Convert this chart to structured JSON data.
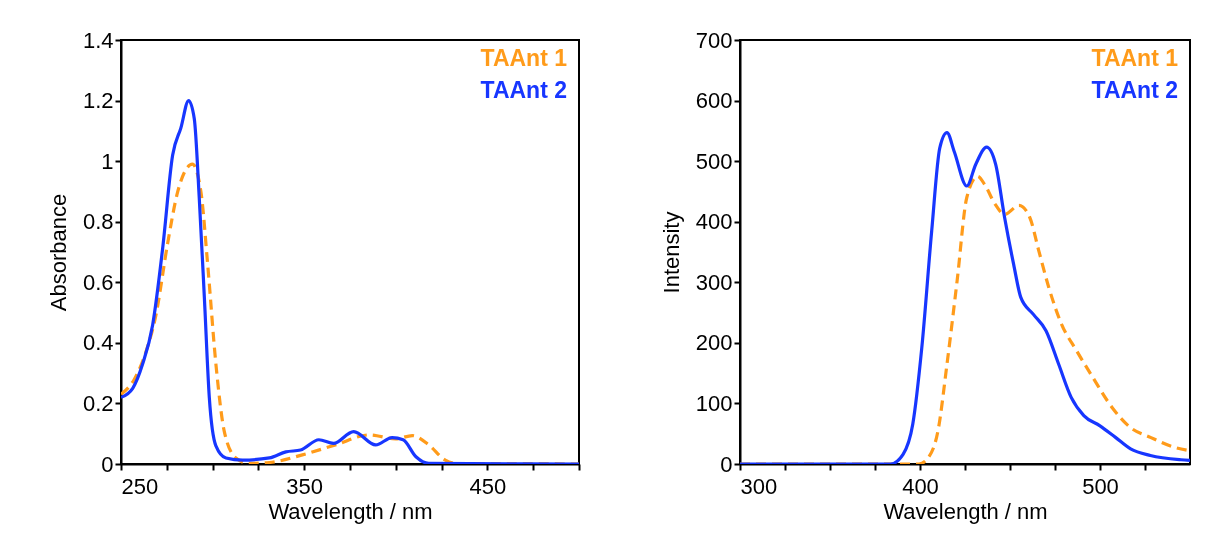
{
  "chart_data": [
    {
      "type": "line",
      "xlabel": "Wavelength / nm",
      "ylabel": "Absorbance",
      "xlim": [
        250,
        500
      ],
      "ylim": [
        0,
        1.4
      ],
      "xticks": [
        250,
        {
          "value": 275,
          "label": null
        },
        {
          "value": 300,
          "label": null
        },
        {
          "value": 325,
          "label": null
        },
        350,
        {
          "value": 375,
          "label": null
        },
        {
          "value": 400,
          "label": null
        },
        {
          "value": 425,
          "label": null
        },
        450,
        {
          "value": 475,
          "label": null
        },
        {
          "value": 500,
          "label": null
        }
      ],
      "yticks": [
        0,
        0.2,
        0.4,
        0.6,
        0.8,
        1,
        1.2,
        1.4
      ],
      "legend": "top right",
      "grid": false,
      "series": [
        {
          "name": "TAAnt 1",
          "color": "#ff9b1a",
          "line_style": "dashed",
          "x": [
            250,
            257.3,
            263.6,
            269,
            275.5,
            281,
            289,
            293.6,
            297.3,
            301.8,
            306.4,
            312.7,
            320,
            331,
            349,
            367,
            385.5,
            400,
            409,
            418,
            427,
            434.5,
            500
          ],
          "values": [
            0.23,
            0.28,
            0.37,
            0.49,
            0.73,
            0.9,
            0.99,
            0.9,
            0.66,
            0.33,
            0.107,
            0.02,
            0.002,
            0.005,
            0.03,
            0.063,
            0.096,
            0.083,
            0.094,
            0.063,
            0.013,
            0.001,
            0
          ]
        },
        {
          "name": "TAAnt 2",
          "color": "#1736ff",
          "line_style": "solid",
          "x": [
            250,
            256.4,
            261.8,
            267.3,
            272.7,
            278.2,
            282.7,
            286.9,
            290,
            292.7,
            295.5,
            298.2,
            301.8,
            307.3,
            316.4,
            331,
            340,
            348,
            358,
            366,
            377,
            389,
            398,
            404,
            411,
            418,
            500
          ],
          "values": [
            0.22,
            0.25,
            0.33,
            0.46,
            0.71,
            1.02,
            1.11,
            1.2,
            1.14,
            0.88,
            0.55,
            0.22,
            0.06,
            0.02,
            0.013,
            0.02,
            0.04,
            0.046,
            0.08,
            0.068,
            0.107,
            0.063,
            0.087,
            0.08,
            0.024,
            0.002,
            0
          ]
        }
      ]
    },
    {
      "type": "line",
      "xlabel": "Wavelength / nm",
      "ylabel": "Intensity",
      "xlim": [
        300,
        550
      ],
      "ylim": [
        0,
        700
      ],
      "xticks": [
        300,
        {
          "value": 325,
          "label": null
        },
        {
          "value": 350,
          "label": null
        },
        {
          "value": 375,
          "label": null
        },
        400,
        {
          "value": 425,
          "label": null
        },
        {
          "value": 450,
          "label": null
        },
        {
          "value": 475,
          "label": null
        },
        500,
        {
          "value": 525,
          "label": null
        }
      ],
      "yticks": [
        0,
        100,
        200,
        300,
        400,
        500,
        600,
        700
      ],
      "legend": "top right",
      "grid": false,
      "series": [
        {
          "name": "TAAnt 1",
          "color": "#ff9b1a",
          "line_style": "dashed",
          "x": [
            300,
            399.4,
            404.7,
            410,
            415,
            420.6,
            426,
            432,
            436,
            441.7,
            447,
            455,
            461,
            466,
            471.6,
            478.6,
            487,
            496,
            506.8,
            517,
            528,
            542,
            550
          ],
          "values": [
            0,
            0,
            11,
            55,
            165,
            302,
            440,
            475,
            461,
            429,
            412,
            427,
            407,
            352,
            291,
            231,
            187,
            143,
            93,
            60,
            44,
            27,
            22
          ]
        },
        {
          "name": "TAAnt 2",
          "color": "#1736ff",
          "line_style": "solid",
          "x": [
            300,
            383.6,
            390.6,
            396,
            401,
            406.5,
            411,
            415,
            419,
            426,
            431,
            437,
            442,
            447,
            452,
            456,
            463,
            470,
            477,
            484,
            491,
            500,
            508.6,
            517,
            528,
            545,
            550
          ],
          "values": [
            0,
            0,
            16,
            66,
            192,
            385,
            522,
            547,
            516,
            459,
            495,
            523,
            495,
            407,
            330,
            275,
            247,
            220,
            165,
            110,
            80,
            63,
            44,
            25,
            14,
            7,
            6
          ]
        }
      ]
    }
  ]
}
